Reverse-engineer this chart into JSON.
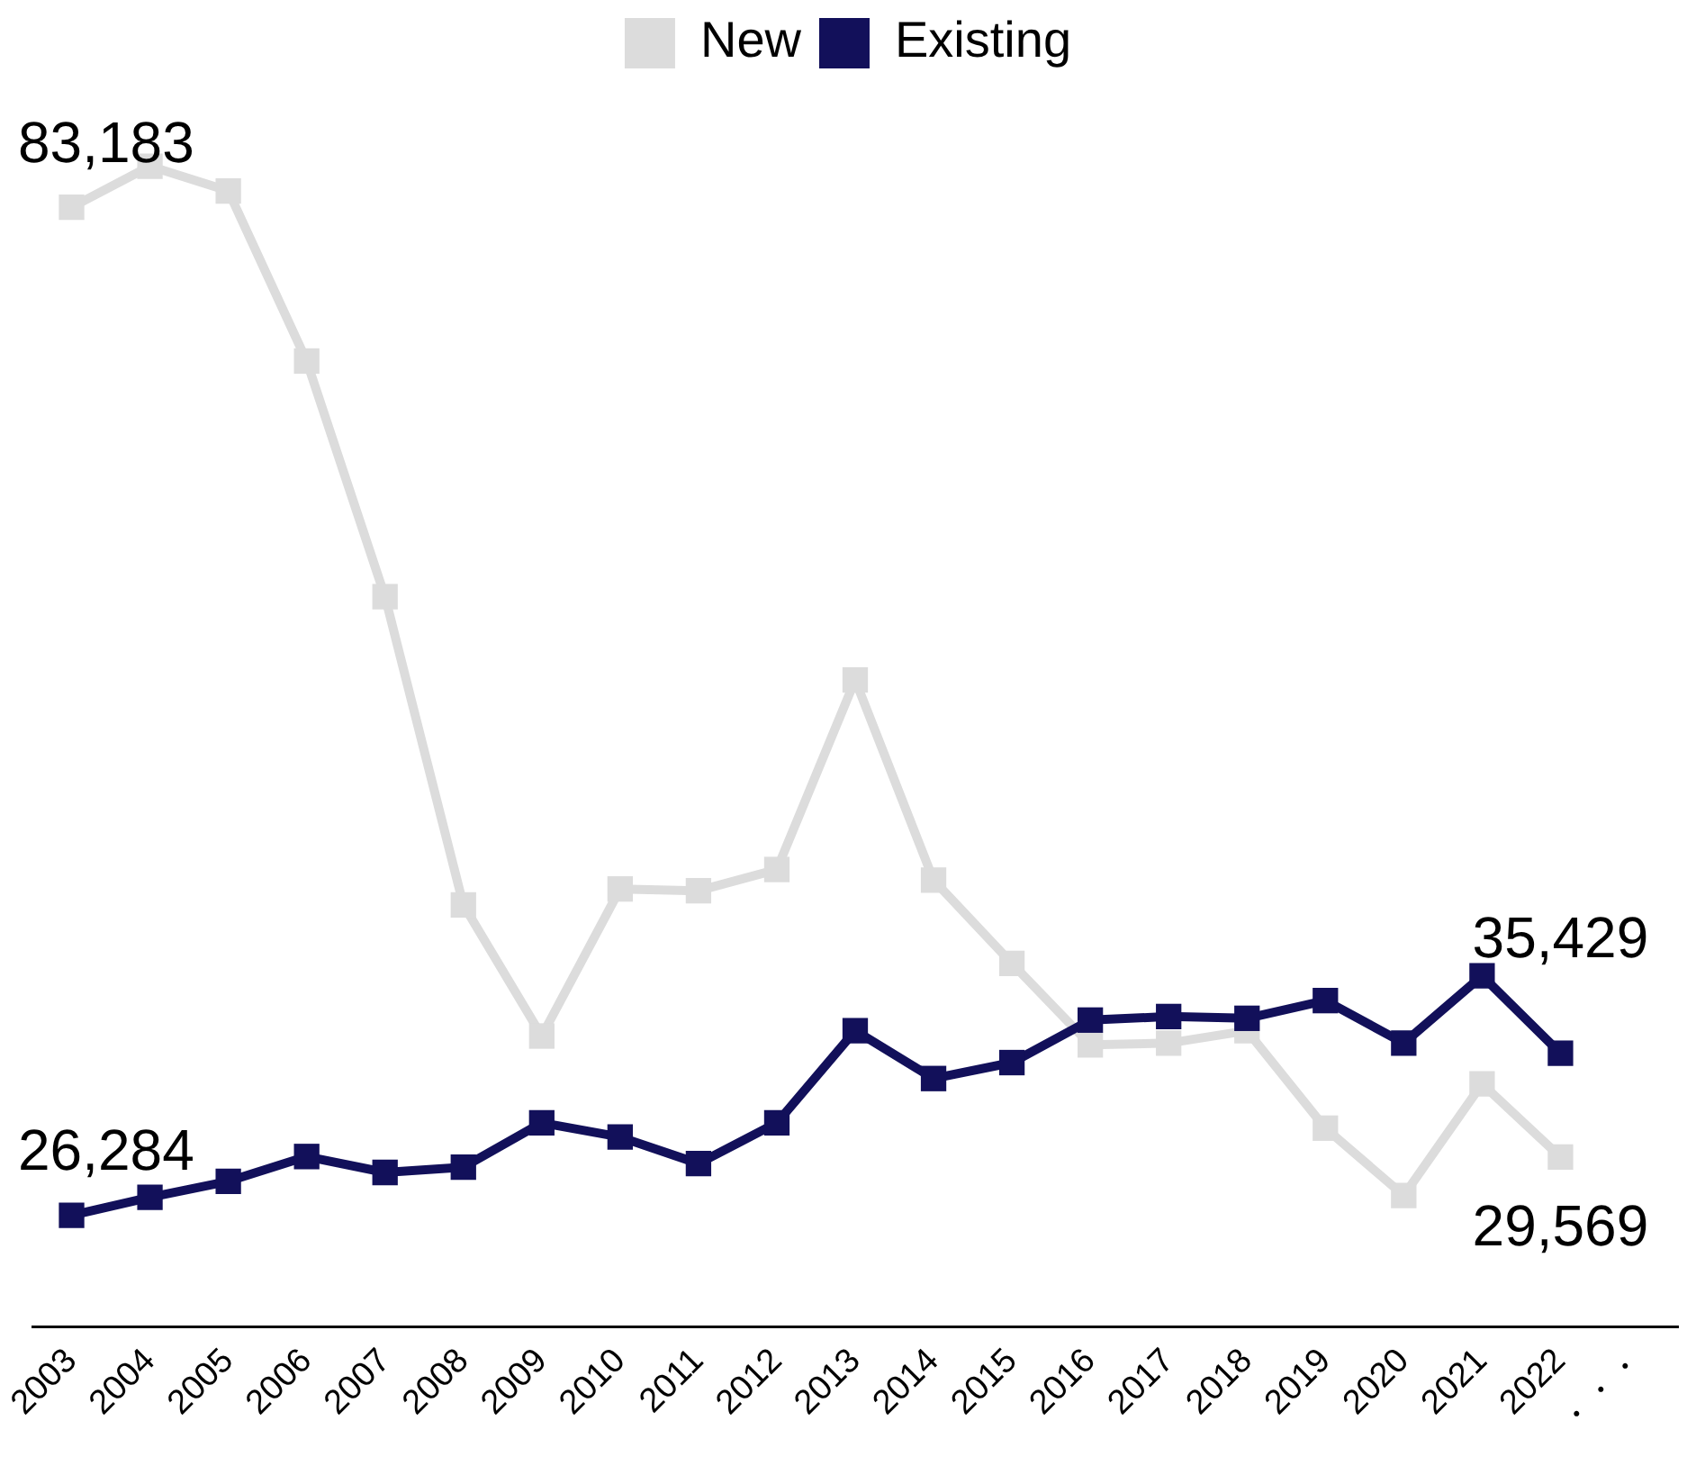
{
  "chart_data": {
    "type": "line",
    "categories": [
      "2003",
      "2004",
      "2005",
      "2006",
      "2007",
      "2008",
      "2009",
      "2010",
      "2011",
      "2012",
      "2013",
      "2014",
      "2015",
      "2016",
      "2017",
      "2018",
      "2019",
      "2020",
      "2021",
      "2022",
      "・・・"
    ],
    "series": [
      {
        "name": "New",
        "color": "#dcdcdc",
        "values": [
          83183,
          85500,
          84100,
          74500,
          61200,
          43800,
          36400,
          44700,
          44600,
          45800,
          56500,
          45200,
          40500,
          35900,
          36000,
          36700,
          31200,
          27400,
          33700,
          29569,
          null
        ],
        "value_labels": [
          "83,183",
          null,
          null,
          null,
          null,
          null,
          null,
          null,
          null,
          null,
          null,
          null,
          null,
          null,
          null,
          null,
          null,
          null,
          null,
          "29,569",
          null
        ]
      },
      {
        "name": "Existing",
        "color": "#12105a",
        "values": [
          26284,
          27300,
          28200,
          29600,
          28700,
          29000,
          31500,
          30700,
          29200,
          31500,
          36700,
          34000,
          34900,
          37300,
          37500,
          37400,
          38400,
          36000,
          39800,
          35429,
          null
        ],
        "value_labels": [
          "26,284",
          null,
          null,
          null,
          null,
          null,
          null,
          null,
          null,
          null,
          null,
          null,
          null,
          null,
          null,
          null,
          null,
          null,
          null,
          "35,429",
          null
        ]
      }
    ],
    "tick_labels": "x",
    "grid": false,
    "legend": "top",
    "marker": "square",
    "line_style": "solid"
  }
}
